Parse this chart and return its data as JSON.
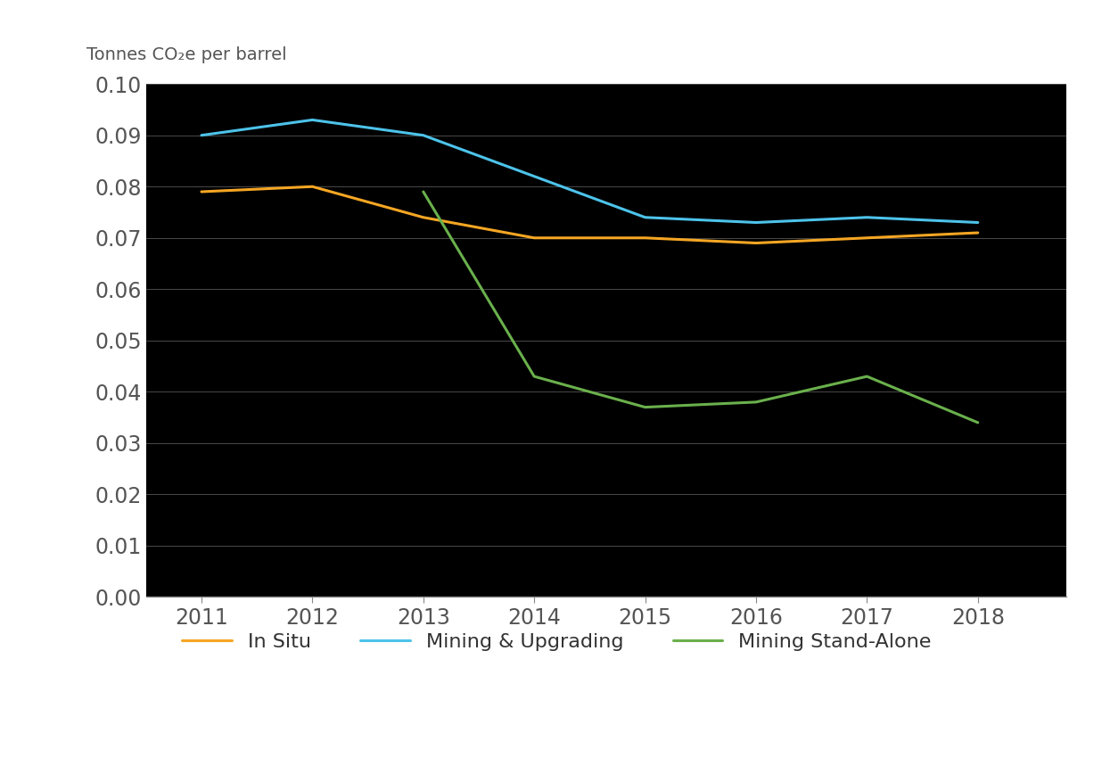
{
  "years": [
    2011,
    2012,
    2013,
    2014,
    2015,
    2016,
    2017,
    2018
  ],
  "in_situ": [
    0.079,
    0.08,
    0.074,
    0.07,
    0.07,
    0.069,
    0.07,
    0.071
  ],
  "mining_upgrading": [
    0.09,
    0.093,
    0.09,
    0.082,
    0.074,
    0.073,
    0.074,
    0.073
  ],
  "mining_standalone_years": [
    2013,
    2014,
    2015,
    2016,
    2017,
    2018
  ],
  "mining_standalone": [
    0.079,
    0.043,
    0.037,
    0.038,
    0.043,
    0.034
  ],
  "in_situ_color": "#F5A623",
  "mining_upgrading_color": "#4DC3EA",
  "mining_standalone_color": "#6AB04C",
  "ylabel": "Tonnes CO₂e per barrel",
  "ylim": [
    0.0,
    0.1
  ],
  "yticks": [
    0.0,
    0.01,
    0.02,
    0.03,
    0.04,
    0.05,
    0.06,
    0.07,
    0.08,
    0.09,
    0.1
  ],
  "plot_bg_color": "#000000",
  "outer_bg_color": "#ffffff",
  "grid_color": "#555555",
  "text_color": "#333333",
  "tick_label_color": "#555555",
  "line_width": 2.2,
  "legend_labels": [
    "In Situ",
    "Mining & Upgrading",
    "Mining Stand-Alone"
  ],
  "spine_color": "#888888",
  "ylabel_color": "#555555"
}
